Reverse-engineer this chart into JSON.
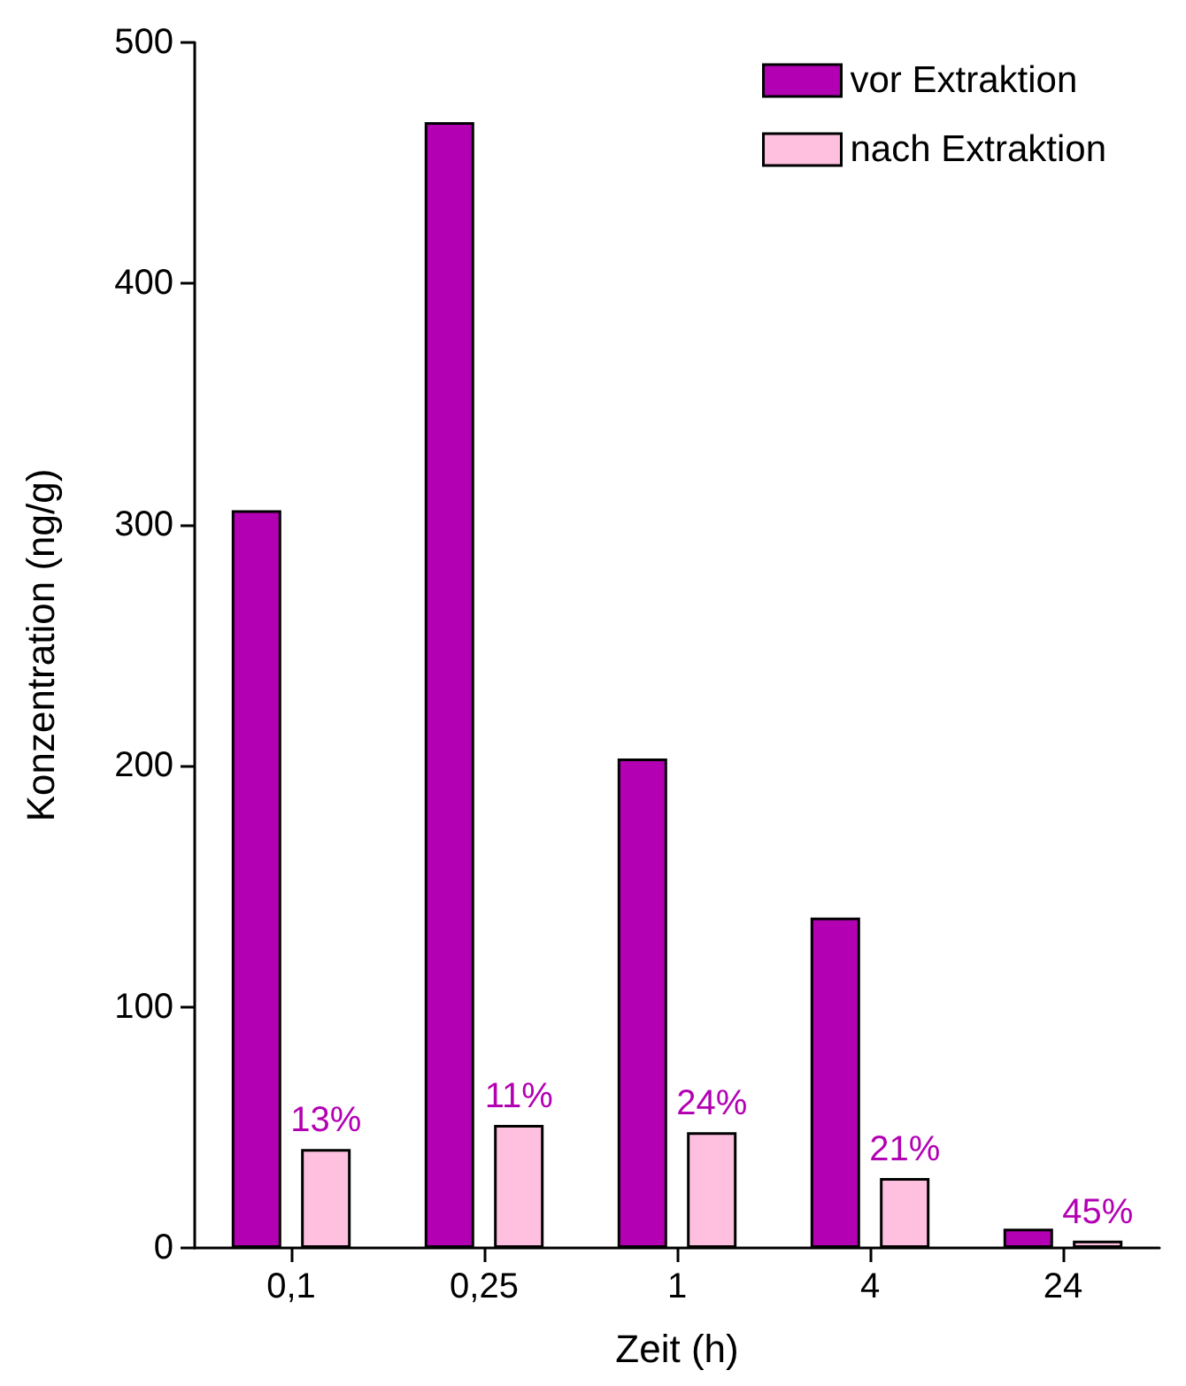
{
  "chart_data": {
    "type": "bar",
    "xlabel": "Zeit (h)",
    "ylabel": "Konzentration (ng/g)",
    "categories": [
      "0,1",
      "0,25",
      "1",
      "4",
      "24"
    ],
    "series": [
      {
        "name": "vor Extraktion",
        "color": "#b300b3",
        "values": [
          306,
          467,
          203,
          137,
          8
        ]
      },
      {
        "name": "nach Extraktion",
        "color": "#ffc0e0",
        "values": [
          41,
          51,
          48,
          29,
          3
        ]
      }
    ],
    "annotations": [
      "13%",
      "11%",
      "24%",
      "21%",
      "45%"
    ],
    "ylim": [
      0,
      500
    ],
    "yticks": [
      0,
      100,
      200,
      300,
      400,
      500
    ],
    "grid": false,
    "legend": "top right"
  }
}
